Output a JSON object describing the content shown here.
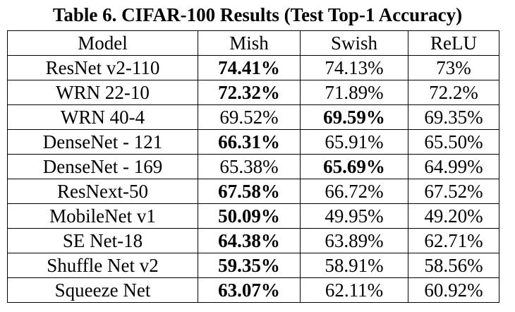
{
  "table": {
    "caption": "Table 6. CIFAR-100 Results (Test Top-1 Accuracy)",
    "headers": [
      "Model",
      "Mish",
      "Swish",
      "ReLU"
    ],
    "rows": [
      {
        "model": "ResNet v2-110",
        "mish": "74.41%",
        "swish": "74.13%",
        "relu": "73%",
        "best": "mish"
      },
      {
        "model": "WRN 22-10",
        "mish": "72.32%",
        "swish": "71.89%",
        "relu": "72.2%",
        "best": "mish"
      },
      {
        "model": "WRN 40-4",
        "mish": "69.52%",
        "swish": "69.59%",
        "relu": "69.35%",
        "best": "swish"
      },
      {
        "model": "DenseNet - 121",
        "mish": "66.31%",
        "swish": "65.91%",
        "relu": "65.50%",
        "best": "mish"
      },
      {
        "model": "DenseNet - 169",
        "mish": "65.38%",
        "swish": "65.69%",
        "relu": "64.99%",
        "best": "swish"
      },
      {
        "model": "ResNext-50",
        "mish": "67.58%",
        "swish": "66.72%",
        "relu": "67.52%",
        "best": "mish"
      },
      {
        "model": "MobileNet v1",
        "mish": "50.09%",
        "swish": "49.95%",
        "relu": "49.20%",
        "best": "mish"
      },
      {
        "model": "SE Net-18",
        "mish": "64.38%",
        "swish": "63.89%",
        "relu": "62.71%",
        "best": "mish"
      },
      {
        "model": "Shuffle Net v2",
        "mish": "59.35%",
        "swish": "58.91%",
        "relu": "58.56%",
        "best": "mish"
      },
      {
        "model": "Squeeze Net",
        "mish": "63.07%",
        "swish": "62.11%",
        "relu": "60.92%",
        "best": "mish"
      }
    ]
  }
}
